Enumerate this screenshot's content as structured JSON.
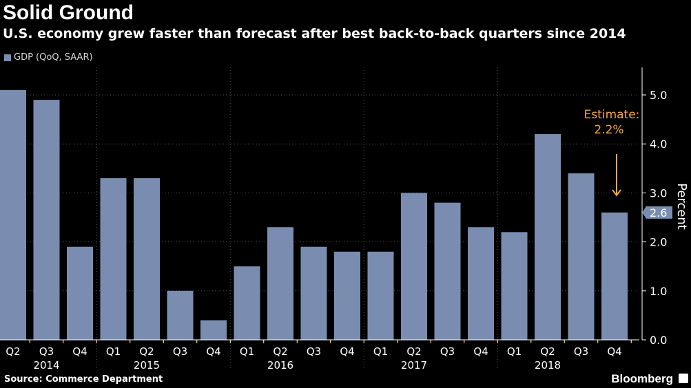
{
  "header": {
    "title": "Solid Ground",
    "subtitle": "U.S. economy grew faster than forecast after best back-to-back quarters since 2014"
  },
  "legend": {
    "label": "GDP (QoQ, SAAR)"
  },
  "footer": {
    "source": "Source: Commerce Department",
    "brand": "Bloomberg"
  },
  "colors": {
    "bar": "#7a8db1",
    "annotation": "#f5a849",
    "background": "#000000",
    "axis_text": "#ffffff",
    "grid": "#555555"
  },
  "chart_data": {
    "type": "bar",
    "categories": [
      "Q2",
      "Q3",
      "Q4",
      "Q1",
      "Q2",
      "Q3",
      "Q4",
      "Q1",
      "Q2",
      "Q3",
      "Q4",
      "Q1",
      "Q2",
      "Q3",
      "Q4",
      "Q1",
      "Q2",
      "Q3",
      "Q4"
    ],
    "year_labels": [
      {
        "label": "2014",
        "index": 1
      },
      {
        "label": "2015",
        "index": 4
      },
      {
        "label": "2016",
        "index": 8
      },
      {
        "label": "2017",
        "index": 12
      },
      {
        "label": "2018",
        "index": 16
      }
    ],
    "series": [
      {
        "name": "GDP (QoQ, SAAR)",
        "values": [
          5.1,
          4.9,
          1.9,
          3.3,
          3.3,
          1.0,
          0.4,
          1.5,
          2.3,
          1.9,
          1.8,
          1.8,
          3.0,
          2.8,
          2.3,
          2.2,
          4.2,
          3.4,
          2.6
        ]
      }
    ],
    "ylabel": "Percent",
    "ylim": [
      -0.1,
      5.5
    ],
    "yticks": [
      0.0,
      1.0,
      2.0,
      3.0,
      4.0,
      5.0
    ],
    "ytick_labels": [
      "0.0",
      "1.0",
      "2.0",
      "3.0",
      "4.0",
      "5.0"
    ],
    "y_axis_side": "right",
    "last_value_label": "2.6",
    "annotation": {
      "text_line1": "Estimate:",
      "text_line2": "2.2%",
      "points_to_index": 18
    },
    "grid": "vertical dotted at year boundaries",
    "legend_position": "top-left"
  }
}
